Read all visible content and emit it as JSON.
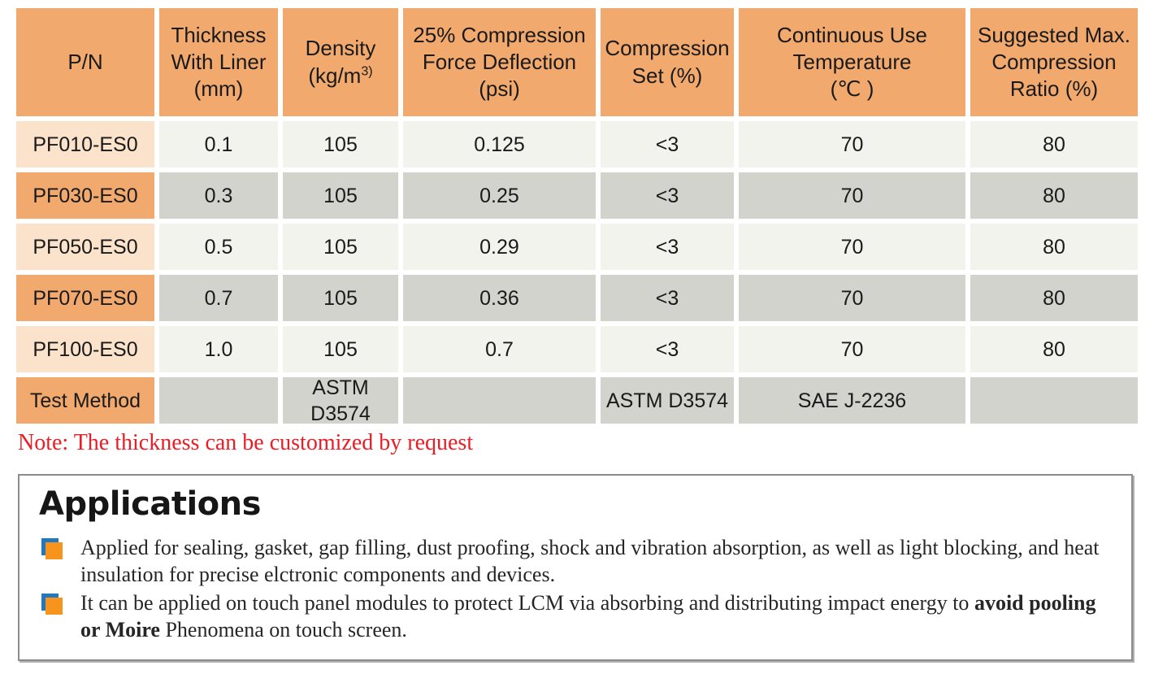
{
  "table": {
    "headers": [
      {
        "id": "pn",
        "lines": [
          "P/N"
        ]
      },
      {
        "id": "thickness",
        "lines": [
          "Thickness",
          "With Liner",
          "(mm)"
        ]
      },
      {
        "id": "density",
        "lines": [
          "Density",
          "(kg/m"
        ],
        "sup": "3)"
      },
      {
        "id": "cfd",
        "lines": [
          "25% Compression",
          "Force Deflection",
          "(psi)"
        ]
      },
      {
        "id": "compression-set",
        "lines": [
          "Compression",
          "Set (%)"
        ]
      },
      {
        "id": "continuous-temp",
        "lines": [
          "Continuous Use",
          "Temperature",
          "(℃ )"
        ]
      },
      {
        "id": "max-ratio",
        "lines": [
          "Suggested Max.",
          "Compression",
          "Ratio (%)"
        ]
      }
    ],
    "rows": [
      {
        "pn": "PF010-ES0",
        "values": [
          "0.1",
          "105",
          "0.125",
          "<3",
          "70",
          "80"
        ],
        "variant": "light"
      },
      {
        "pn": "PF030-ES0",
        "values": [
          "0.3",
          "105",
          "0.25",
          "<3",
          "70",
          "80"
        ],
        "variant": "dark"
      },
      {
        "pn": "PF050-ES0",
        "values": [
          "0.5",
          "105",
          "0.29",
          "<3",
          "70",
          "80"
        ],
        "variant": "light"
      },
      {
        "pn": "PF070-ES0",
        "values": [
          "0.7",
          "105",
          "0.36",
          "<3",
          "70",
          "80"
        ],
        "variant": "dark"
      },
      {
        "pn": "PF100-ES0",
        "values": [
          "1.0",
          "105",
          "0.7",
          "<3",
          "70",
          "80"
        ],
        "variant": "light"
      }
    ],
    "test_method_row": {
      "pn": "Test Method",
      "values": [
        "",
        "ASTM D3574",
        "",
        "ASTM D3574",
        "SAE J-2236",
        ""
      ],
      "variant": "dark"
    }
  },
  "note": "Note: The thickness can be customized by request",
  "applications": {
    "title": "Applications",
    "bullets": [
      {
        "segments": [
          {
            "text": "Applied for sealing, gasket, gap filling, dust proofing, shock and vibration absorption, as well as light blocking, and heat insulation for precise elctronic components and devices.",
            "bold": false
          }
        ]
      },
      {
        "segments": [
          {
            "text": "It can be applied on touch panel modules to protect LCM via absorbing and distributing impact energy to ",
            "bold": false
          },
          {
            "text": "avoid pooling or Moire",
            "bold": true
          },
          {
            "text": " Phenomena on touch screen.",
            "bold": false
          }
        ]
      }
    ]
  },
  "colors": {
    "header_orange": "#F2A96E",
    "pn_peach": "#FBE2CB",
    "row_light_gray": "#F3F3EE",
    "row_dark_gray": "#D3D3CD",
    "note_red": "#ED1C24",
    "bullet_orange": "#F7941E",
    "bullet_blue": "#2278BE",
    "box_border_gray": "#8C8C8C"
  }
}
